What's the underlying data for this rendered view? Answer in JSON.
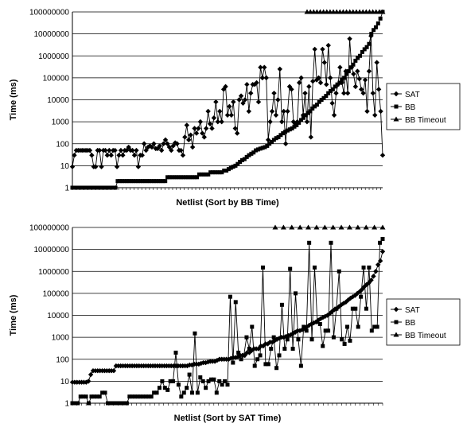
{
  "chart_data": [
    {
      "type": "line",
      "xlabel": "Netlist (Sort by BB Time)",
      "ylabel": "Time (ms)",
      "yscale": "log",
      "ylim": [
        1,
        100000000
      ],
      "yticks": [
        "1",
        "10",
        "100",
        "1000",
        "10000",
        "100000",
        "1000000",
        "10000000",
        "100000000"
      ],
      "grid": true,
      "legend_position": "right",
      "series": [
        {
          "name": "SAT",
          "marker": "diamond",
          "values": [
            9,
            30,
            50,
            50,
            50,
            50,
            50,
            50,
            50,
            50,
            30,
            9,
            9,
            50,
            50,
            9,
            50,
            50,
            30,
            50,
            30,
            50,
            50,
            9,
            30,
            50,
            30,
            50,
            50,
            70,
            50,
            50,
            30,
            50,
            9,
            30,
            30,
            100,
            50,
            70,
            80,
            70,
            100,
            60,
            60,
            80,
            50,
            100,
            150,
            100,
            70,
            50,
            80,
            110,
            100,
            50,
            50,
            30,
            200,
            700,
            150,
            250,
            70,
            500,
            300,
            500,
            1000,
            300,
            200,
            500,
            3000,
            800,
            500,
            1500,
            8000,
            1000,
            3000,
            1000,
            30000,
            40000,
            2000,
            5000,
            2000,
            8000,
            500,
            300,
            10000,
            15000,
            7000,
            10000,
            50000,
            3000,
            20000,
            50000,
            50000,
            60000,
            8000,
            300000,
            100000,
            300000,
            100000,
            150,
            1000,
            3000,
            20000,
            2000,
            10000,
            250000,
            1000,
            3000,
            100,
            3000,
            40000,
            30000,
            1000,
            800,
            1000,
            60000,
            100000,
            2000,
            20000,
            1000,
            40000,
            200,
            70000,
            2000000,
            80000,
            100000,
            60000,
            2000000,
            500000,
            50000,
            3000000,
            100000,
            7000,
            2000,
            20000,
            50000,
            300000,
            60000,
            20000,
            200000,
            20000,
            6000000,
            300000,
            150000,
            40000,
            200000,
            90000,
            30000,
            20000,
            80000,
            3000,
            200000,
            8000000,
            20000,
            2000,
            500000,
            30000,
            3000,
            30
          ]
        },
        {
          "name": "BB",
          "marker": "square",
          "values": [
            1,
            1,
            1,
            1,
            1,
            1,
            1,
            1,
            1,
            1,
            1,
            1,
            1,
            1,
            1,
            1,
            1,
            1,
            1,
            1,
            2,
            2,
            2,
            2,
            2,
            2,
            2,
            2,
            2,
            2,
            2,
            2,
            2,
            2,
            2,
            2,
            2,
            2,
            2,
            2,
            2,
            2,
            3,
            3,
            3,
            3,
            3,
            3,
            3,
            3,
            3,
            3,
            3,
            3,
            3,
            3,
            4,
            4,
            4,
            4,
            4,
            5,
            5,
            5,
            5,
            5,
            5,
            6,
            6,
            7,
            8,
            9,
            10,
            12,
            15,
            18,
            20,
            25,
            30,
            35,
            40,
            50,
            55,
            60,
            65,
            70,
            80,
            100,
            120,
            150,
            180,
            200,
            250,
            300,
            350,
            400,
            450,
            500,
            600,
            700,
            900,
            1200,
            1500,
            2000,
            2500,
            3000,
            4000,
            5000,
            6000,
            8000,
            10000,
            12000,
            15000,
            20000,
            25000,
            30000,
            40000,
            50000,
            60000,
            80000,
            100000,
            150000,
            200000,
            300000,
            400000,
            600000,
            800000,
            1000000,
            1500000,
            2000000,
            2500000,
            3500000,
            10000000,
            15000000,
            20000000,
            30000000,
            50000000,
            100000000
          ]
        },
        {
          "name": "BB Timeout",
          "marker": "triangle",
          "values": [
            100000000,
            100000000,
            100000000,
            100000000,
            100000000,
            100000000,
            100000000,
            100000000,
            100000000,
            100000000,
            100000000,
            100000000,
            100000000,
            100000000,
            100000000,
            100000000,
            100000000,
            100000000,
            100000000,
            100000000,
            100000000,
            100000000,
            100000000,
            100000000
          ]
        }
      ]
    },
    {
      "type": "line",
      "xlabel": "Netlist (Sort by SAT Time)",
      "ylabel": "Time (ms)",
      "yscale": "log",
      "ylim": [
        1,
        100000000
      ],
      "yticks": [
        "1",
        "10",
        "100",
        "1000",
        "10000",
        "100000",
        "1000000",
        "10000000",
        "100000000"
      ],
      "grid": true,
      "legend_position": "right",
      "series": [
        {
          "name": "SAT",
          "marker": "diamond",
          "values": [
            9,
            9,
            9,
            9,
            9,
            9,
            9,
            10,
            20,
            30,
            30,
            30,
            30,
            30,
            30,
            30,
            30,
            30,
            30,
            50,
            50,
            50,
            50,
            50,
            50,
            50,
            50,
            50,
            50,
            50,
            50,
            50,
            50,
            50,
            50,
            50,
            50,
            50,
            50,
            50,
            50,
            50,
            50,
            50,
            50,
            50,
            50,
            50,
            50,
            50,
            50,
            55,
            55,
            60,
            60,
            60,
            65,
            70,
            70,
            75,
            80,
            80,
            80,
            90,
            100,
            100,
            100,
            100,
            100,
            110,
            120,
            120,
            130,
            150,
            150,
            150,
            200,
            200,
            250,
            300,
            300,
            300,
            400,
            400,
            500,
            500,
            600,
            600,
            700,
            800,
            900,
            1000,
            1000,
            1100,
            1200,
            1300,
            1500,
            1700,
            2000,
            2000,
            2200,
            2500,
            3000,
            3500,
            4000,
            4500,
            5000,
            6000,
            7000,
            8000,
            9000,
            10000,
            12000,
            15000,
            18000,
            20000,
            25000,
            30000,
            35000,
            40000,
            50000,
            60000,
            70000,
            80000,
            100000,
            120000,
            150000,
            200000,
            250000,
            300000,
            400000,
            600000,
            1000000,
            2000000,
            3000000,
            8000000
          ]
        },
        {
          "name": "BB",
          "marker": "square",
          "values": [
            1,
            1,
            1,
            2,
            2,
            2,
            1,
            2,
            2,
            2,
            2,
            3,
            3,
            1,
            1,
            1,
            1,
            1,
            1,
            1,
            1,
            2,
            2,
            2,
            2,
            2,
            2,
            2,
            2,
            2,
            3,
            3,
            5,
            10,
            5,
            4,
            10,
            10,
            200,
            7,
            2,
            3,
            5,
            20,
            3,
            1500,
            3,
            15,
            10,
            5,
            10,
            12,
            12,
            3,
            10,
            7,
            10,
            7,
            70000,
            70,
            40000,
            200,
            100,
            150,
            1000,
            300,
            3000,
            50,
            100,
            150,
            1500000,
            60,
            60,
            300,
            1000,
            40,
            150,
            30000,
            300,
            800,
            1300000,
            300,
            100000,
            800,
            50,
            3000,
            2000,
            20000000,
            800,
            1500000,
            5000,
            4000,
            400,
            2000,
            2000,
            20000000,
            1000,
            20000,
            1000000,
            800,
            500,
            3000,
            700,
            20000,
            20000,
            3000,
            70000,
            1500000,
            20000,
            1500000,
            2000,
            3000,
            3000,
            20000000,
            30000000
          ]
        },
        {
          "name": "BB Timeout",
          "marker": "triangle",
          "values": [
            100000000,
            100000000,
            100000000,
            100000000,
            100000000,
            100000000,
            100000000,
            100000000,
            100000000,
            100000000,
            100000000,
            100000000,
            100000000,
            100000000
          ]
        }
      ]
    }
  ]
}
